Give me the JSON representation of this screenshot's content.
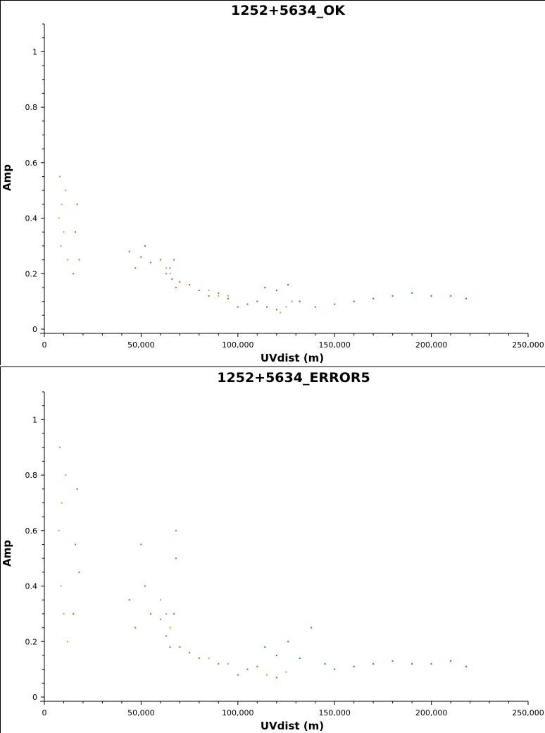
{
  "chart_data": [
    {
      "type": "scatter",
      "title": "1252+5634_OK",
      "xlabel": "UVdist (m)",
      "ylabel": "Amp",
      "xlim": [
        0,
        250000
      ],
      "ylim": [
        0,
        1.1
      ],
      "xticks": [
        0,
        50000,
        100000,
        150000,
        200000,
        250000
      ],
      "xtick_labels": [
        "0",
        "50,000",
        "100,000",
        "150,000",
        "200,000",
        "250,000"
      ],
      "yticks": [
        0,
        0.2,
        0.4,
        0.6,
        0.8,
        1
      ],
      "ytick_labels": [
        "0",
        "0.2",
        "0.4",
        "0.6",
        "0.8",
        "1"
      ],
      "grid": false,
      "series": [
        {
          "color": "#7ccd1a",
          "x": [
            7500,
            8000,
            8500,
            9000,
            10000,
            11000,
            12000,
            63000,
            65000,
            85000,
            90000,
            95000,
            115000,
            120000,
            122000,
            125000,
            128000
          ],
          "y": [
            0.4,
            0.55,
            0.3,
            0.45,
            0.35,
            0.5,
            0.25,
            0.22,
            0.2,
            0.14,
            0.12,
            0.12,
            0.08,
            0.07,
            0.06,
            0.08,
            0.1
          ]
        },
        {
          "color": "#b5650a",
          "x": [
            15000,
            16000,
            17000,
            18000,
            44000,
            47000,
            50000,
            52000,
            55000,
            60000,
            70000,
            75000,
            80000,
            85000,
            90000,
            95000,
            100000,
            105000,
            110000,
            115000,
            120000
          ],
          "y": [
            0.2,
            0.35,
            0.45,
            0.25,
            0.28,
            0.22,
            0.26,
            0.3,
            0.24,
            0.25,
            0.17,
            0.16,
            0.14,
            0.12,
            0.13,
            0.11,
            0.08,
            0.09,
            0.1,
            0.08,
            0.07
          ]
        },
        {
          "color": "#da4d9a",
          "x": [
            63000,
            65000,
            66000,
            67000,
            68000
          ],
          "y": [
            0.2,
            0.22,
            0.18,
            0.25,
            0.15
          ]
        },
        {
          "color": "#0a8a94",
          "x": [
            114000,
            120000,
            126000,
            132000,
            140000,
            150000,
            160000,
            170000,
            180000,
            190000,
            200000,
            210000,
            218000
          ],
          "y": [
            0.15,
            0.14,
            0.16,
            0.1,
            0.08,
            0.09,
            0.1,
            0.11,
            0.12,
            0.13,
            0.12,
            0.12,
            0.11
          ]
        }
      ]
    },
    {
      "type": "scatter",
      "title": "1252+5634_ERROR5",
      "xlabel": "UVdist (m)",
      "ylabel": "Amp",
      "xlim": [
        0,
        250000
      ],
      "ylim": [
        0,
        1.1
      ],
      "xticks": [
        0,
        50000,
        100000,
        150000,
        200000,
        250000
      ],
      "xtick_labels": [
        "0",
        "50,000",
        "100,000",
        "150,000",
        "200,000",
        "250,000"
      ],
      "yticks": [
        0,
        0.2,
        0.4,
        0.6,
        0.8,
        1
      ],
      "ytick_labels": [
        "0",
        "0.2",
        "0.4",
        "0.6",
        "0.8",
        "1"
      ],
      "grid": false,
      "series": [
        {
          "color": "#7ccd1a",
          "x": [
            7500,
            8000,
            8500,
            9000,
            10000,
            11000,
            12000,
            60000,
            63000,
            65000,
            85000,
            95000,
            115000,
            120000,
            125000
          ],
          "y": [
            0.6,
            0.9,
            0.4,
            0.7,
            0.3,
            0.8,
            0.2,
            0.35,
            0.3,
            0.25,
            0.14,
            0.12,
            0.08,
            0.07,
            0.09
          ]
        },
        {
          "color": "#b5650a",
          "x": [
            15000,
            16000,
            17000,
            18000,
            44000,
            47000,
            50000,
            52000,
            55000,
            60000,
            70000,
            75000,
            80000,
            90000,
            100000,
            105000,
            110000,
            120000
          ],
          "y": [
            0.3,
            0.55,
            0.75,
            0.45,
            0.35,
            0.25,
            0.55,
            0.4,
            0.3,
            0.28,
            0.18,
            0.16,
            0.14,
            0.12,
            0.08,
            0.1,
            0.11,
            0.07
          ]
        },
        {
          "color": "#da4d9a",
          "x": [
            63000,
            65000,
            67000,
            68000,
            68000
          ],
          "y": [
            0.22,
            0.18,
            0.3,
            0.5,
            0.6
          ]
        },
        {
          "color": "#0a8a94",
          "x": [
            114000,
            120000,
            126000,
            132000,
            138000,
            145000,
            150000,
            160000,
            170000,
            180000,
            190000,
            200000,
            210000,
            218000
          ],
          "y": [
            0.18,
            0.15,
            0.2,
            0.14,
            0.25,
            0.12,
            0.1,
            0.11,
            0.12,
            0.13,
            0.12,
            0.12,
            0.13,
            0.11
          ]
        }
      ]
    }
  ]
}
